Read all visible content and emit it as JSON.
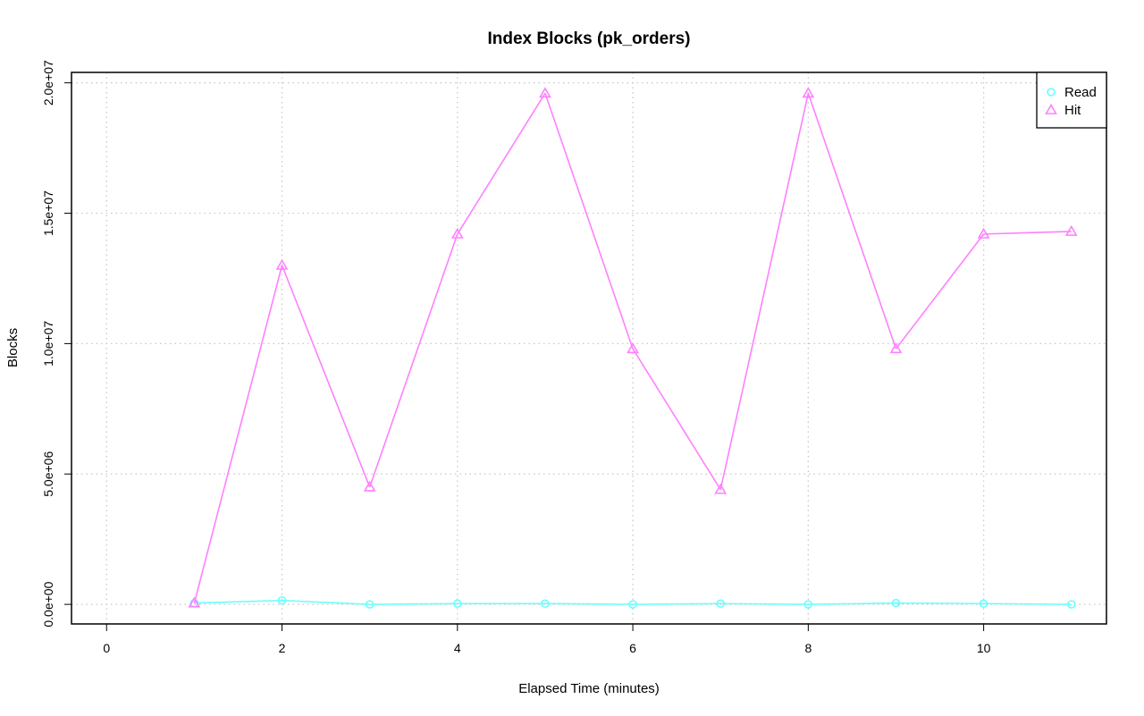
{
  "chart_data": {
    "type": "line",
    "title": "Index Blocks (pk_orders)",
    "xlabel": "Elapsed Time (minutes)",
    "ylabel": "Blocks",
    "xlim": [
      -0.4,
      11.4
    ],
    "ylim": [
      -750000,
      20400000
    ],
    "x_ticks": [
      0,
      2,
      4,
      6,
      8,
      10
    ],
    "x_tick_labels": [
      "0",
      "2",
      "4",
      "6",
      "8",
      "10"
    ],
    "y_ticks": [
      0,
      5000000,
      10000000,
      15000000,
      20000000
    ],
    "y_tick_labels": [
      "0.0e+00",
      "5.0e+06",
      "1.0e+07",
      "1.5e+07",
      "2.0e+07"
    ],
    "grid": true,
    "legend_position": "top-right",
    "x": [
      1,
      2,
      3,
      4,
      5,
      6,
      7,
      8,
      9,
      10,
      11
    ],
    "series": [
      {
        "name": "Read",
        "color": "#66ffff",
        "marker": "circle",
        "values": [
          50000,
          150000,
          0,
          30000,
          30000,
          0,
          30000,
          0,
          50000,
          30000,
          0
        ]
      },
      {
        "name": "Hit",
        "color": "#ff80ff",
        "marker": "triangle",
        "values": [
          50000,
          13000000,
          4500000,
          14200000,
          19600000,
          9800000,
          4400000,
          19600000,
          9800000,
          14200000,
          14300000
        ]
      }
    ]
  }
}
